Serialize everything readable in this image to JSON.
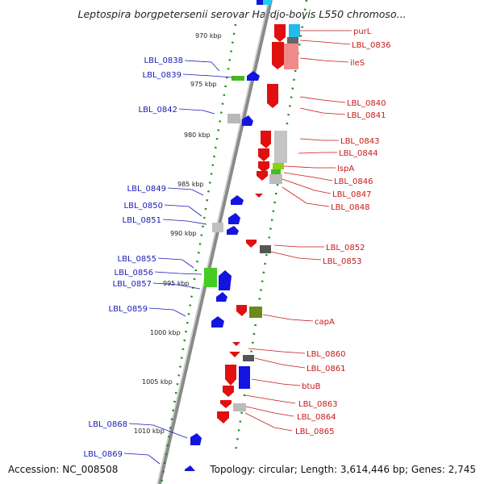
{
  "title": "Leptospira borgpetersenii serovar Hardjo-bovis L550 chromoso...",
  "accession": "Accession: NC_008508",
  "meta": "Topology: circular; Length: 3,614,446 bp; Genes: 2,745",
  "colors": {
    "forward": "#e01010",
    "reverse": "#1414e0",
    "ruler": "#1a8a1a",
    "backbone": "#888888"
  },
  "kbp_ticks": [
    "970 kbp",
    "975 kbp",
    "980 kbp",
    "985 kbp",
    "990 kbp",
    "995 kbp",
    "1000 kbp",
    "1005 kbp",
    "1010 kbp"
  ],
  "left_labels": [
    "LBL_0838",
    "LBL_0839",
    "LBL_0842",
    "LBL_0849",
    "LBL_0850",
    "LBL_0851",
    "LBL_0855",
    "LBL_0856",
    "LBL_0857",
    "LBL_0859",
    "LBL_0868",
    "LBL_0869"
  ],
  "right_labels": [
    "purL",
    "LBL_0836",
    "ileS",
    "LBL_0840",
    "LBL_0841",
    "LBL_0843",
    "LBL_0844",
    "lspA",
    "LBL_0846",
    "LBL_0847",
    "LBL_0848",
    "LBL_0852",
    "LBL_0853",
    "capA",
    "LBL_0860",
    "LBL_0861",
    "btuB",
    "LBL_0863",
    "LBL_0864",
    "LBL_0865"
  ]
}
